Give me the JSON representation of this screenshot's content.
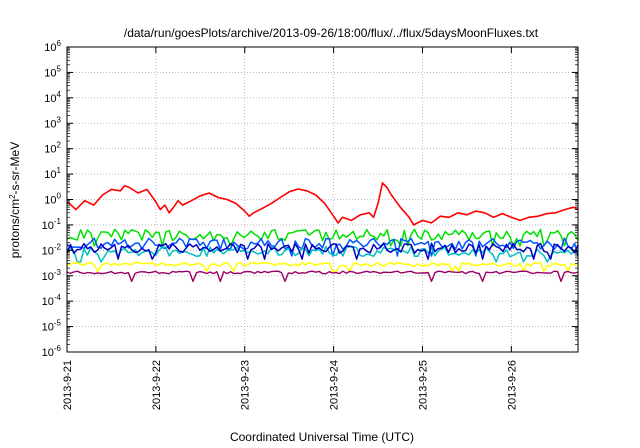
{
  "chart_data": {
    "type": "line",
    "title": "/data/run/goesPlots/archive/2013-09-26/18:00/flux/../flux/5daysMoonFluxes.txt",
    "xlabel": "Coordinated Universal Time (UTC)",
    "ylabel": {
      "base": "protons/cm",
      "sup": "2",
      "rest": "-s-sr-MeV"
    },
    "y_scale": "log",
    "ylim_exp": [
      -6,
      6
    ],
    "y_tick_base": "10",
    "y_tick_exponents": [
      "-6",
      "-5",
      "-4",
      "-3",
      "-2",
      "-1",
      "0",
      "1",
      "2",
      "3",
      "4",
      "5",
      "6"
    ],
    "xlim_days": [
      21,
      26.75
    ],
    "x_ticks": [
      {
        "day": 21,
        "label": "2013-9-21"
      },
      {
        "day": 22,
        "label": "2013-9-22"
      },
      {
        "day": 23,
        "label": "2013-9-23"
      },
      {
        "day": 24,
        "label": "2013-9-24"
      },
      {
        "day": 25,
        "label": "2013-9-25"
      },
      {
        "day": 26,
        "label": "2013-9-26"
      }
    ],
    "grid": true,
    "series": [
      {
        "color": "#ff0000",
        "width": 1.6,
        "points": [
          [
            21.0,
            0.85
          ],
          [
            21.1,
            0.4
          ],
          [
            21.2,
            0.9
          ],
          [
            21.3,
            0.6
          ],
          [
            21.4,
            1.5
          ],
          [
            21.5,
            2.5
          ],
          [
            21.6,
            2.2
          ],
          [
            21.65,
            3.5
          ],
          [
            21.7,
            3.0
          ],
          [
            21.8,
            1.8
          ],
          [
            21.9,
            2.5
          ],
          [
            22.0,
            0.8
          ],
          [
            22.05,
            0.4
          ],
          [
            22.1,
            0.6
          ],
          [
            22.15,
            0.3
          ],
          [
            22.2,
            0.5
          ],
          [
            22.25,
            0.9
          ],
          [
            22.3,
            0.6
          ],
          [
            22.4,
            0.9
          ],
          [
            22.5,
            1.4
          ],
          [
            22.6,
            1.8
          ],
          [
            22.7,
            1.2
          ],
          [
            22.8,
            1.0
          ],
          [
            22.9,
            0.7
          ],
          [
            23.0,
            0.35
          ],
          [
            23.05,
            0.22
          ],
          [
            23.1,
            0.3
          ],
          [
            23.2,
            0.45
          ],
          [
            23.3,
            0.7
          ],
          [
            23.4,
            1.2
          ],
          [
            23.5,
            2.0
          ],
          [
            23.6,
            2.6
          ],
          [
            23.7,
            2.2
          ],
          [
            23.8,
            1.5
          ],
          [
            23.9,
            0.7
          ],
          [
            24.0,
            0.22
          ],
          [
            24.05,
            0.12
          ],
          [
            24.1,
            0.2
          ],
          [
            24.2,
            0.15
          ],
          [
            24.3,
            0.25
          ],
          [
            24.4,
            0.3
          ],
          [
            24.45,
            0.2
          ],
          [
            24.5,
            0.7
          ],
          [
            24.55,
            4.5
          ],
          [
            24.6,
            3.0
          ],
          [
            24.65,
            1.5
          ],
          [
            24.75,
            0.5
          ],
          [
            24.85,
            0.2
          ],
          [
            24.9,
            0.1
          ],
          [
            25.0,
            0.15
          ],
          [
            25.1,
            0.12
          ],
          [
            25.2,
            0.22
          ],
          [
            25.3,
            0.2
          ],
          [
            25.4,
            0.3
          ],
          [
            25.5,
            0.25
          ],
          [
            25.6,
            0.35
          ],
          [
            25.7,
            0.3
          ],
          [
            25.8,
            0.2
          ],
          [
            25.9,
            0.28
          ],
          [
            26.0,
            0.2
          ],
          [
            26.1,
            0.15
          ],
          [
            26.2,
            0.2
          ],
          [
            26.3,
            0.22
          ],
          [
            26.4,
            0.28
          ],
          [
            26.5,
            0.3
          ],
          [
            26.6,
            0.4
          ],
          [
            26.7,
            0.5
          ],
          [
            26.75,
            0.4
          ]
        ]
      },
      {
        "color": "#00e000",
        "width": 1.5,
        "mode": "noise",
        "center": 0.04,
        "amp": 0.45,
        "dip": 0.015,
        "phase": 1
      },
      {
        "color": "#0055ff",
        "width": 1.5,
        "mode": "noise",
        "center": 0.018,
        "amp": 0.45,
        "dip": 0.006,
        "phase": 2
      },
      {
        "color": "#00c0c0",
        "width": 1.5,
        "mode": "noise",
        "center": 0.009,
        "amp": 0.4,
        "dip": 0.0035,
        "phase": 3
      },
      {
        "color": "#0000c0",
        "width": 1.5,
        "mode": "noise",
        "center": 0.012,
        "amp": 0.4,
        "dip": 0.0045,
        "phase": 4
      },
      {
        "color": "#ffff00",
        "width": 1.5,
        "mode": "noise",
        "center": 0.0028,
        "amp": 0.15,
        "dip": 0.0015,
        "phase": 5
      },
      {
        "color": "#990066",
        "width": 1.4,
        "mode": "noise",
        "center": 0.00135,
        "amp": 0.1,
        "dip": 0.0006,
        "phase": 6
      }
    ]
  }
}
